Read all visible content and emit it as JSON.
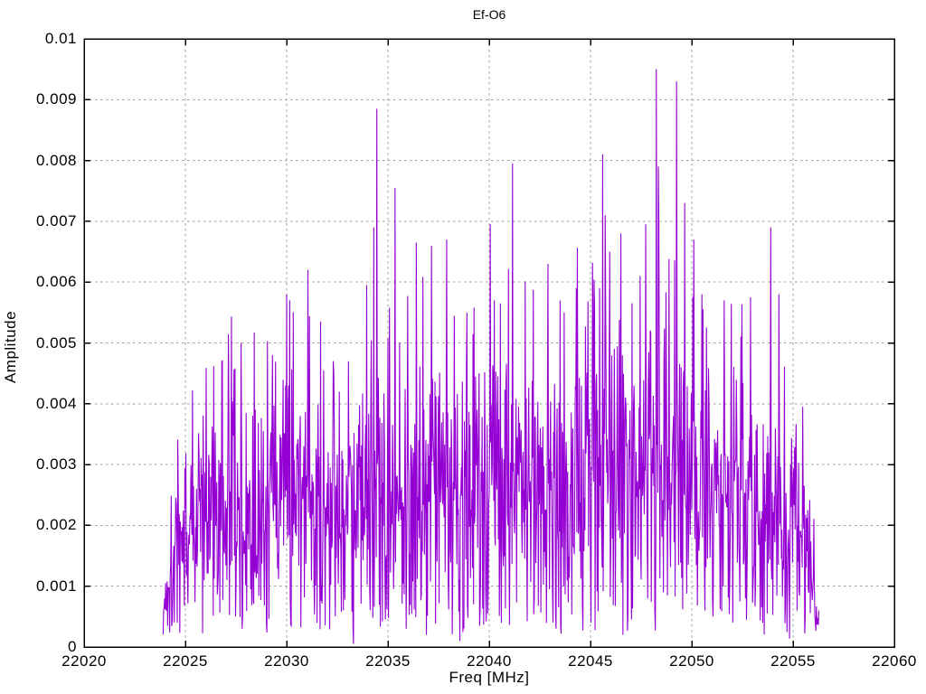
{
  "page": {
    "background_color": "#ffffff",
    "text_color": "#000000"
  },
  "chart_data": {
    "type": "line",
    "title": "Ef-O6",
    "xlabel": "Freq [MHz]",
    "ylabel": "Amplitude",
    "xlim": [
      22020,
      22060
    ],
    "ylim": [
      0,
      0.01
    ],
    "grid": true,
    "legend": "none",
    "line_color": "#9400d3",
    "grid_color": "#9e9e9e",
    "axis_color": "#000000",
    "xticks": [
      {
        "value": 22020,
        "label": "22020"
      },
      {
        "value": 22025,
        "label": "22025"
      },
      {
        "value": 22030,
        "label": "22030"
      },
      {
        "value": 22035,
        "label": "22035"
      },
      {
        "value": 22040,
        "label": "22040"
      },
      {
        "value": 22045,
        "label": "22045"
      },
      {
        "value": 22050,
        "label": "22050"
      },
      {
        "value": 22055,
        "label": "22055"
      },
      {
        "value": 22060,
        "label": "22060"
      }
    ],
    "yticks": [
      {
        "value": 0,
        "label": "0"
      },
      {
        "value": 0.001,
        "label": "0.001"
      },
      {
        "value": 0.002,
        "label": "0.002"
      },
      {
        "value": 0.003,
        "label": "0.003"
      },
      {
        "value": 0.004,
        "label": "0.004"
      },
      {
        "value": 0.005,
        "label": "0.005"
      },
      {
        "value": 0.006,
        "label": "0.006"
      },
      {
        "value": 0.007,
        "label": "0.007"
      },
      {
        "value": 0.008,
        "label": "0.008"
      },
      {
        "value": 0.009,
        "label": "0.009"
      },
      {
        "value": 0.01,
        "label": "0.01"
      }
    ],
    "series": [
      {
        "name": "Ef-O6",
        "description": "dense noisy amplitude spectrum between 22024 and 22056.3 MHz",
        "x_start": 22023.9,
        "x_end": 22056.3,
        "sample_step": 0.025,
        "noise_seed": 1337,
        "envelope_mean": [
          [
            22023.9,
            0.0005
          ],
          [
            22024.3,
            0.0014
          ],
          [
            22025,
            0.0019
          ],
          [
            22026,
            0.0021
          ],
          [
            22027,
            0.0023
          ],
          [
            22028,
            0.0022
          ],
          [
            22029,
            0.0022
          ],
          [
            22030,
            0.0025
          ],
          [
            22031,
            0.0026
          ],
          [
            22032,
            0.0023
          ],
          [
            22033,
            0.0022
          ],
          [
            22034,
            0.0026
          ],
          [
            22035,
            0.0026
          ],
          [
            22036,
            0.0026
          ],
          [
            22037,
            0.0027
          ],
          [
            22038,
            0.0026
          ],
          [
            22039,
            0.0026
          ],
          [
            22040,
            0.0028
          ],
          [
            22041,
            0.0027
          ],
          [
            22042,
            0.0026
          ],
          [
            22043,
            0.0026
          ],
          [
            22044,
            0.0027
          ],
          [
            22045,
            0.0028
          ],
          [
            22046,
            0.0028
          ],
          [
            22047,
            0.0028
          ],
          [
            22048,
            0.003
          ],
          [
            22049,
            0.003
          ],
          [
            22050,
            0.0028
          ],
          [
            22051,
            0.0026
          ],
          [
            22052,
            0.0024
          ],
          [
            22053,
            0.0025
          ],
          [
            22054,
            0.0023
          ],
          [
            22055,
            0.002
          ],
          [
            22055.7,
            0.0016
          ],
          [
            22056.0,
            0.001
          ],
          [
            22056.3,
            0.0002
          ]
        ],
        "peaks": [
          [
            22026.8,
            0.0047
          ],
          [
            22027.75,
            0.005
          ],
          [
            22029.3,
            0.0048
          ],
          [
            22030.0,
            0.0058
          ],
          [
            22030.15,
            0.0057
          ],
          [
            22031.05,
            0.0062
          ],
          [
            22032.3,
            0.0047
          ],
          [
            22033.05,
            0.0047
          ],
          [
            22034.3,
            0.0069
          ],
          [
            22034.45,
            0.00885
          ],
          [
            22035.35,
            0.00755
          ],
          [
            22036.4,
            0.00665
          ],
          [
            22037.15,
            0.0066
          ],
          [
            22037.9,
            0.0067
          ],
          [
            22038.9,
            0.0055
          ],
          [
            22040.05,
            0.00695
          ],
          [
            22040.25,
            0.0057
          ],
          [
            22041.15,
            0.00795
          ],
          [
            22042.9,
            0.0063
          ],
          [
            22043.7,
            0.0055
          ],
          [
            22044.3,
            0.0059
          ],
          [
            22045.45,
            0.0059
          ],
          [
            22045.6,
            0.0081
          ],
          [
            22045.72,
            0.0071
          ],
          [
            22045.95,
            0.0065
          ],
          [
            22046.5,
            0.0068
          ],
          [
            22047.45,
            0.0061
          ],
          [
            22048.25,
            0.0095
          ],
          [
            22048.35,
            0.0079
          ],
          [
            22049.25,
            0.0093
          ],
          [
            22049.65,
            0.0073
          ],
          [
            22050.1,
            0.0067
          ],
          [
            22050.5,
            0.0058
          ],
          [
            22051.6,
            0.0057
          ],
          [
            22052.9,
            0.00575
          ],
          [
            22053.9,
            0.0069
          ],
          [
            22054.3,
            0.0058
          ]
        ],
        "dips": [
          [
            22024.6,
            0.0004
          ],
          [
            22027.8,
            0.0003
          ],
          [
            22029.0,
            0.0004
          ],
          [
            22031.5,
            0.0004
          ],
          [
            22033.3,
            5e-05
          ],
          [
            22035.9,
            0.0003
          ],
          [
            22036.9,
            0.0002
          ],
          [
            22038.55,
            0.0001
          ],
          [
            22040.6,
            0.0004
          ],
          [
            22043.3,
            0.0003
          ],
          [
            22046.6,
            0.0002
          ],
          [
            22048.6,
            0.0009
          ],
          [
            22051.05,
            0.0005
          ],
          [
            22053.5,
            0.0004
          ],
          [
            22055.2,
            0.0006
          ]
        ]
      }
    ]
  }
}
